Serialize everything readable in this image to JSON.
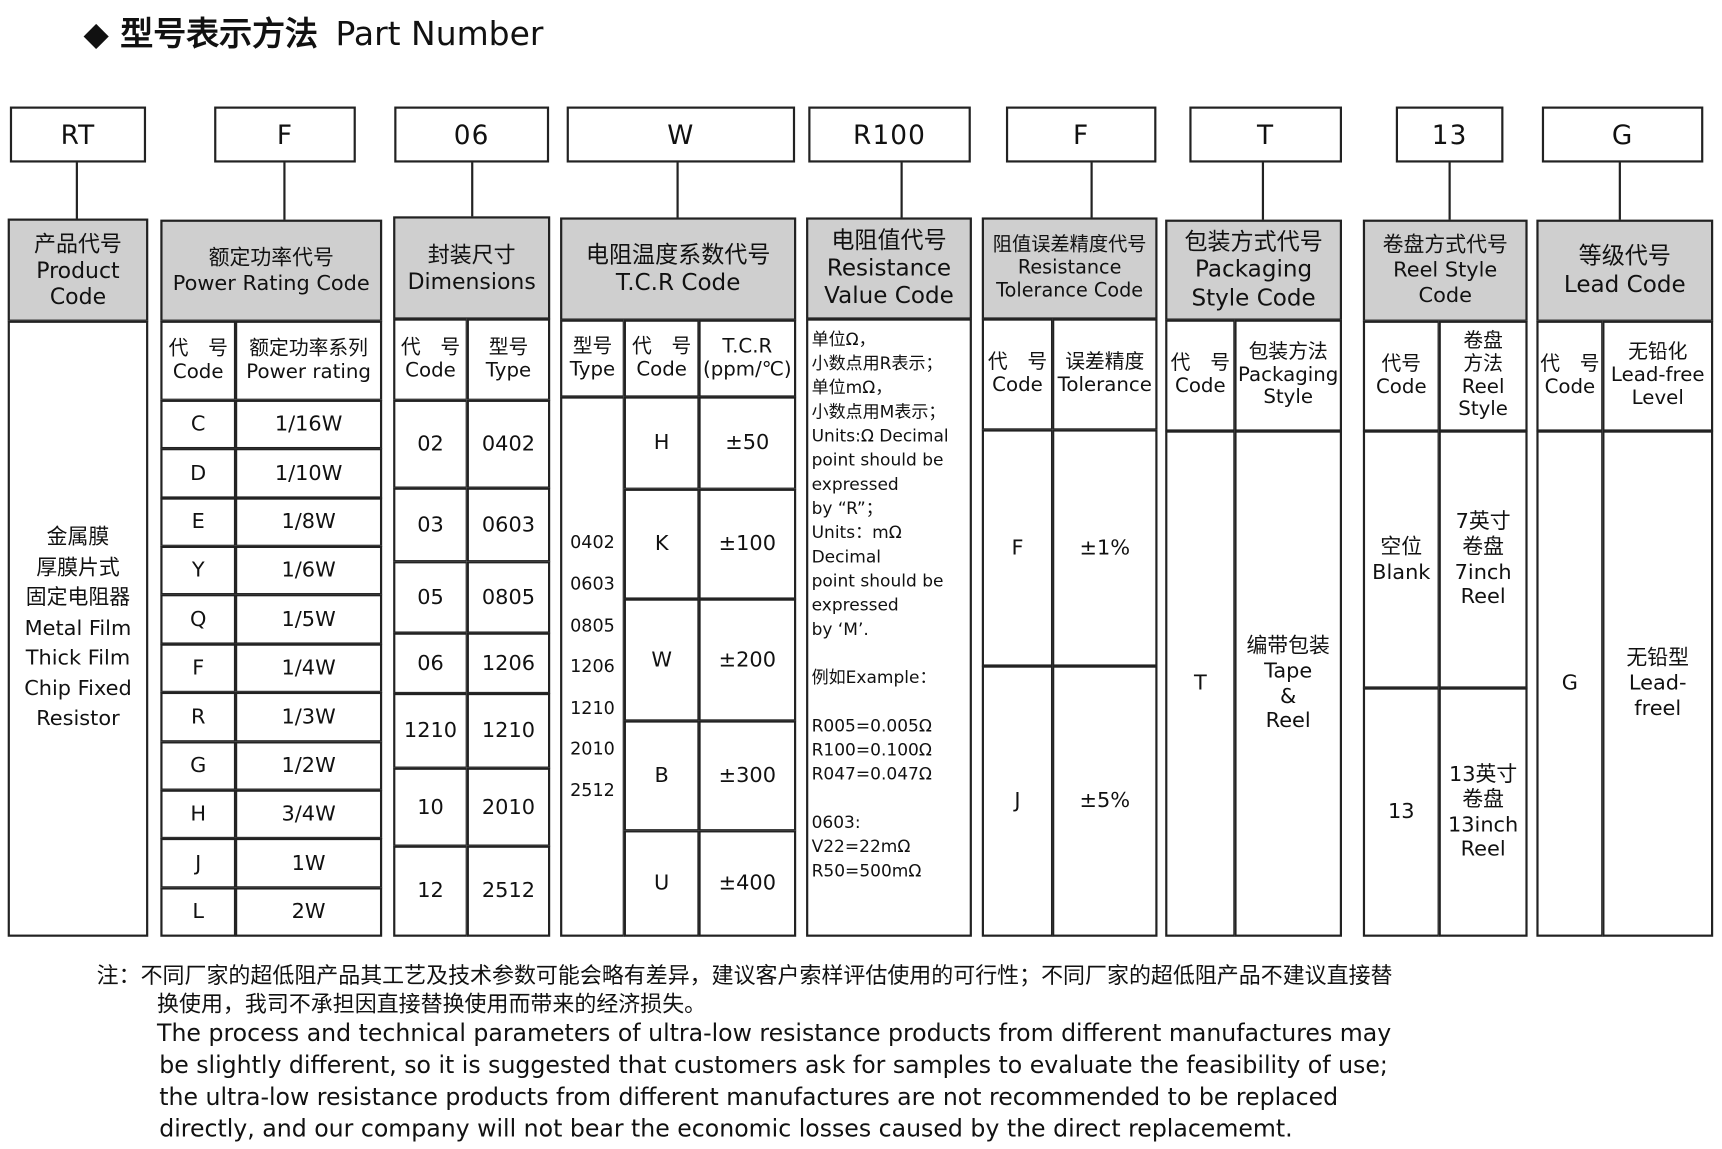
{
  "title": {
    "bullet": "◆",
    "zh": "型号表示方法",
    "en": "Part Number"
  },
  "codes": [
    "RT",
    "F",
    "06",
    "W",
    "R100",
    "F",
    "T",
    "13",
    "G"
  ],
  "product": {
    "header": "产品代号\nProduct\nCode",
    "body": "金属膜\n厚膜片式\n固定电阻器\nMetal Film\nThick Film\nChip Fixed\nResistor"
  },
  "power": {
    "header": "额定功率代号\nPower Rating Code",
    "sub": [
      "代　号\nCode",
      "额定功率系列\nPower rating"
    ],
    "rows": [
      [
        "C",
        "1/16W"
      ],
      [
        "D",
        "1/10W"
      ],
      [
        "E",
        "1/8W"
      ],
      [
        "Y",
        "1/6W"
      ],
      [
        "Q",
        "1/5W"
      ],
      [
        "F",
        "1/4W"
      ],
      [
        "R",
        "1/3W"
      ],
      [
        "G",
        "1/2W"
      ],
      [
        "H",
        "3/4W"
      ],
      [
        "J",
        "1W"
      ],
      [
        "L",
        "2W"
      ]
    ]
  },
  "dimensions": {
    "header": "封装尺寸\nDimensions",
    "sub": [
      "代　号\nCode",
      "型号\nType"
    ],
    "rows": [
      [
        "02",
        "0402"
      ],
      [
        "03",
        "0603"
      ],
      [
        "05",
        "0805"
      ],
      [
        "06",
        "1206"
      ],
      [
        "1210",
        "1210"
      ],
      [
        "10",
        "2010"
      ],
      [
        "12",
        "2512"
      ]
    ]
  },
  "tcr": {
    "header": "电阻温度系数代号\nT.C.R Code",
    "sub": [
      "型号\nType",
      "代　号\nCode",
      "T.C.R\n(ppm/℃)"
    ],
    "types": "0402\n0603\n0805\n1206\n1210\n2010\n2512",
    "rows": [
      [
        "H",
        "±50"
      ],
      [
        "K",
        "±100"
      ],
      [
        "W",
        "±200"
      ],
      [
        "B",
        "±300"
      ],
      [
        "U",
        "±400"
      ]
    ]
  },
  "resistance": {
    "header": "电阻值代号\nResistance\nValue Code",
    "body": "单位Ω，\n小数点用R表示；\n单位mΩ，\n小数点用M表示；\nUnits:Ω Decimal\npoint should be\nexpressed\nby “R”；\nUnits：mΩ\nDecimal\npoint should be\nexpressed\nby ‘M’.\n\n例如Example：\n\nR005=0.005Ω\nR100=0.100Ω\nR047=0.047Ω\n\n0603:\nV22=22mΩ\nR50=500mΩ"
  },
  "tolerance": {
    "header": "阻值误差精度代号\nResistance\nTolerance Code",
    "sub": [
      "代　号\nCode",
      "误差精度\nTolerance"
    ],
    "rows": [
      [
        "F",
        "±1%"
      ],
      [
        "J",
        "±5%"
      ]
    ]
  },
  "packaging": {
    "header": "包装方式代号\nPackaging\nStyle Code",
    "sub": [
      "代　号\nCode",
      "包装方法\nPackaging\nStyle"
    ],
    "rows": [
      [
        "T",
        "编带包装\nTape\n&\nReel"
      ]
    ]
  },
  "reel": {
    "header": "卷盘方式代号\nReel Style\nCode",
    "sub": [
      "代号\nCode",
      "卷盘\n方法\nReel\nStyle"
    ],
    "rows": [
      [
        "空位\nBlank",
        "7英寸\n卷盘\n7inch\nReel"
      ],
      [
        "13",
        "13英寸\n卷盘\n13inch\nReel"
      ]
    ]
  },
  "lead": {
    "header": "等级代号\nLead Code",
    "sub": [
      "代　号\nCode",
      "无铅化\nLead-free\nLevel"
    ],
    "rows": [
      [
        "G",
        "无铅型\nLead-\nfreel"
      ]
    ]
  },
  "note": {
    "zh1": "注：不同厂家的超低阻产品其工艺及技术参数可能会略有差异，建议客户索样评估使用的可行性；不同厂家的超低阻产品不建议直接替",
    "zh2": "换使用，我司不承担因直接替换使用而带来的经济损失。",
    "en": [
      "The process and technical  parameters of ultra-low resistance products from  different manufactures may",
      "be slightly different, so it  is suggested that customers ask  for samples to  evaluate  the feasibility of use;",
      "the ultra-low resistance  products from different manufactures are  not  recommended to be  replaced",
      "directly, and  our company will not  bear the economic losses  caused by  the direct  replacememt."
    ]
  }
}
